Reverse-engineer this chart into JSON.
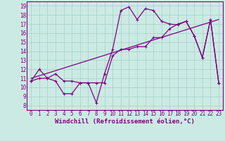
{
  "xlabel": "Windchill (Refroidissement éolien,°C)",
  "bg_color": "#cceae4",
  "line_color": "#800080",
  "spine_color": "#800080",
  "grid_color": "#aad4cc",
  "xlim": [
    -0.5,
    23.5
  ],
  "ylim": [
    7.5,
    19.5
  ],
  "xticks": [
    0,
    1,
    2,
    3,
    4,
    5,
    6,
    7,
    8,
    9,
    10,
    11,
    12,
    13,
    14,
    15,
    16,
    17,
    18,
    19,
    20,
    21,
    22,
    23
  ],
  "yticks": [
    8,
    9,
    10,
    11,
    12,
    13,
    14,
    15,
    16,
    17,
    18,
    19
  ],
  "curve1_x": [
    0,
    1,
    2,
    3,
    4,
    5,
    6,
    7,
    8,
    9,
    10,
    11,
    12,
    13,
    14,
    15,
    16,
    17,
    18,
    19,
    20,
    21,
    22,
    23
  ],
  "curve1_y": [
    10.7,
    12.0,
    11.0,
    10.7,
    9.3,
    9.3,
    10.5,
    10.5,
    8.3,
    11.5,
    14.2,
    18.5,
    18.9,
    17.5,
    18.7,
    18.5,
    17.3,
    17.0,
    16.9,
    17.3,
    15.7,
    13.3,
    17.5,
    10.5
  ],
  "curve2_x": [
    0,
    1,
    2,
    3,
    4,
    5,
    6,
    7,
    8,
    9,
    10,
    11,
    12,
    13,
    14,
    15,
    16,
    17,
    18,
    19,
    20,
    21,
    22,
    23
  ],
  "curve2_y": [
    10.7,
    11.0,
    11.0,
    11.5,
    10.7,
    10.7,
    10.5,
    10.5,
    10.5,
    10.5,
    13.5,
    14.2,
    14.2,
    14.5,
    14.5,
    15.5,
    15.5,
    16.5,
    17.0,
    17.3,
    15.7,
    13.3,
    17.5,
    10.5
  ],
  "curve3_x": [
    0,
    23
  ],
  "curve3_y": [
    11.0,
    17.5
  ],
  "tick_fontsize": 5.5,
  "xlabel_fontsize": 6.5
}
